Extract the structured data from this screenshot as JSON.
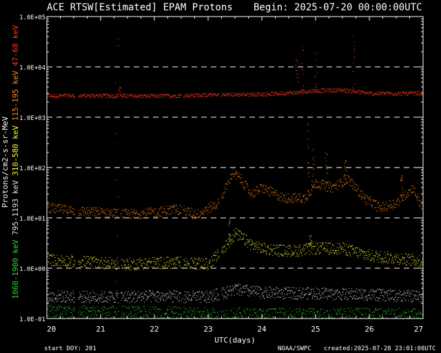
{
  "chart_data": {
    "type": "scatter",
    "title": "ACE RTSW[Estimated] EPAM Protons",
    "begin_label": "Begin: 2025-07-20 00:00:00UTC",
    "xlabel": "UTC(days)",
    "ylabel": "Protons/cm2-s-sr-MeV",
    "x_ticks": [
      "20",
      "21",
      "22",
      "23",
      "24",
      "25",
      "26",
      "27"
    ],
    "xlim": [
      20,
      27
    ],
    "y_scale": "log",
    "ylim": [
      0.1,
      100000
    ],
    "y_ticks": [
      "1.0E-01",
      "1.0E+00",
      "1.0E+01",
      "1.0E+02",
      "1.0E+03",
      "1.0E+04",
      "1.0E+05"
    ],
    "grid": "horizontal dashed at each decade",
    "series": [
      {
        "name": "47-68 keV",
        "color": "#ff3b1f",
        "baseline": [
          [
            20,
            2700
          ],
          [
            21,
            2700
          ],
          [
            22,
            2650
          ],
          [
            23,
            2800
          ],
          [
            24,
            2900
          ],
          [
            24.6,
            3100
          ],
          [
            25,
            3400
          ],
          [
            25.5,
            3500
          ],
          [
            26,
            3000
          ],
          [
            27,
            3000
          ]
        ],
        "spikes": [
          [
            21.35,
            4000
          ],
          [
            24.65,
            15000
          ],
          [
            24.75,
            40000
          ],
          [
            25.0,
            20000
          ],
          [
            25.7,
            45000
          ]
        ]
      },
      {
        "name": "115-195 keV",
        "color": "#ff8a1a",
        "baseline": [
          [
            20,
            16
          ],
          [
            20.5,
            14
          ],
          [
            21,
            13
          ],
          [
            21.5,
            12
          ],
          [
            22,
            13
          ],
          [
            22.4,
            15
          ],
          [
            22.8,
            12
          ],
          [
            23.2,
            20
          ],
          [
            23.45,
            80
          ],
          [
            23.6,
            60
          ],
          [
            23.8,
            30
          ],
          [
            24,
            40
          ],
          [
            24.4,
            25
          ],
          [
            24.8,
            25
          ],
          [
            25.0,
            50
          ],
          [
            25.3,
            40
          ],
          [
            25.6,
            60
          ],
          [
            25.9,
            25
          ],
          [
            26.2,
            16
          ],
          [
            26.5,
            20
          ],
          [
            26.8,
            40
          ],
          [
            27,
            15
          ]
        ],
        "spikes": [
          [
            24.85,
            800
          ],
          [
            24.95,
            300
          ],
          [
            25.2,
            200
          ],
          [
            25.55,
            150
          ],
          [
            26.6,
            80
          ]
        ]
      },
      {
        "name": "310-580 keV",
        "color": "#ffff33",
        "baseline": [
          [
            20,
            1.5
          ],
          [
            21,
            1.3
          ],
          [
            21.5,
            1.2
          ],
          [
            22,
            1.3
          ],
          [
            22.5,
            1.3
          ],
          [
            23,
            1.2
          ],
          [
            23.3,
            2.5
          ],
          [
            23.5,
            5
          ],
          [
            23.8,
            3
          ],
          [
            24,
            2.5
          ],
          [
            24.5,
            2.2
          ],
          [
            25,
            2.5
          ],
          [
            25.5,
            2.5
          ],
          [
            26,
            1.8
          ],
          [
            26.5,
            1.6
          ],
          [
            27,
            1.4
          ]
        ],
        "spikes": [
          [
            23.4,
            10
          ],
          [
            24.9,
            5
          ]
        ]
      },
      {
        "name": "795-1193 keV",
        "color": "#e6e6e6",
        "baseline": [
          [
            20,
            0.28
          ],
          [
            21,
            0.27
          ],
          [
            22,
            0.28
          ],
          [
            23,
            0.27
          ],
          [
            23.5,
            0.38
          ],
          [
            24,
            0.33
          ],
          [
            25,
            0.32
          ],
          [
            26,
            0.3
          ],
          [
            27,
            0.28
          ]
        ],
        "spikes": []
      },
      {
        "name": "1060-1900 keV",
        "color": "#33dd33",
        "baseline": [
          [
            20,
            0.14
          ],
          [
            21,
            0.13
          ],
          [
            22,
            0.13
          ],
          [
            23,
            0.12
          ],
          [
            24,
            0.12
          ],
          [
            25,
            0.12
          ],
          [
            26,
            0.12
          ],
          [
            27,
            0.12
          ]
        ],
        "spikes": [
          [
            21.3,
            60000
          ]
        ]
      }
    ],
    "data_gaps_days": [
      [
        20.52,
        20.58
      ],
      [
        21.33,
        21.37
      ],
      [
        22.5,
        22.53
      ],
      [
        23.2,
        23.24
      ]
    ]
  },
  "footer": {
    "start_doy": "start DOY:  201",
    "agency": "NOAA/SWPC",
    "created": "created:2025-07-28 23:01:08UTC"
  }
}
